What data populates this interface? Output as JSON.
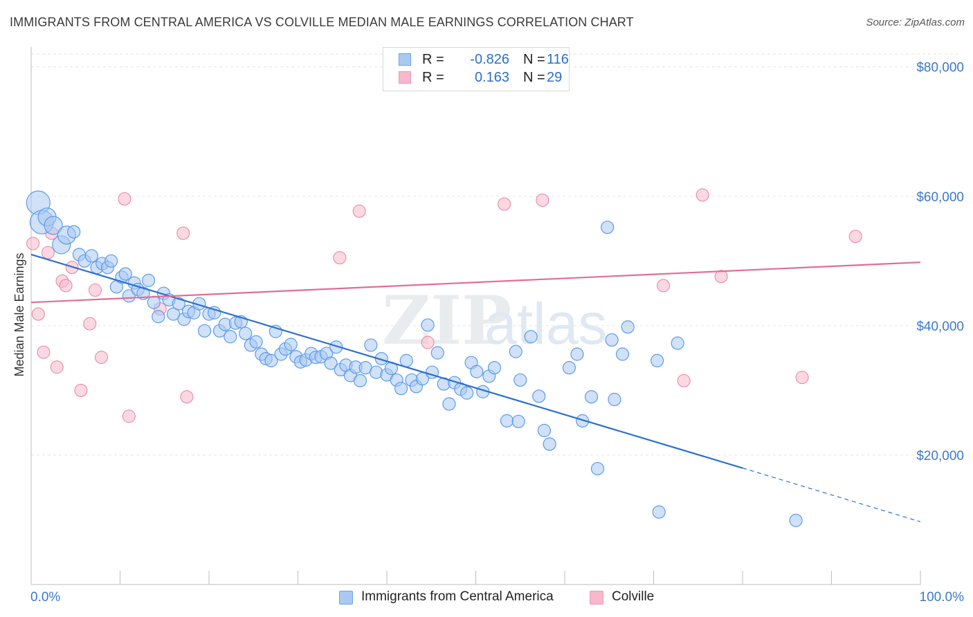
{
  "header": {
    "title": "IMMIGRANTS FROM CENTRAL AMERICA VS COLVILLE MEDIAN MALE EARNINGS CORRELATION CHART",
    "source": "Source: ZipAtlas.com"
  },
  "watermark": "ZIPatlas",
  "legend": {
    "rows": [
      {
        "r_label": "R =",
        "r_value": "-0.826",
        "n_label": "N =",
        "n_value": "116",
        "color": "#a9c9f2"
      },
      {
        "r_label": "R =",
        "r_value": "0.163",
        "n_label": "N =",
        "n_value": "29",
        "color": "#f7b8cb"
      }
    ]
  },
  "bottom_legend": {
    "items": [
      {
        "label": "Immigrants from Central America",
        "color": "#a9c9f2"
      },
      {
        "label": "Colville",
        "color": "#f7b8cb"
      }
    ]
  },
  "chart_data": {
    "type": "scatter",
    "title": "IMMIGRANTS FROM CENTRAL AMERICA VS COLVILLE MEDIAN MALE EARNINGS CORRELATION CHART",
    "xlabel": "",
    "ylabel": "Median Male Earnings",
    "xlim": [
      0,
      100
    ],
    "ylim": [
      0,
      82000
    ],
    "x_tick_labels": [
      "0.0%",
      "100.0%"
    ],
    "y_ticks": [
      20000,
      40000,
      60000,
      80000
    ],
    "y_tick_labels": [
      "$20,000",
      "$40,000",
      "$60,000",
      "$80,000"
    ],
    "grid": true,
    "legend_position": "top-center",
    "series": [
      {
        "name": "Immigrants from Central America",
        "color": "#5b9bea",
        "fill": "#a9c9f2",
        "trend": {
          "x0": 0,
          "y0": 51000,
          "x1": 80,
          "y1": 18000,
          "dashed_to_x": 100,
          "dashed_to_y": 9700
        },
        "points": [
          {
            "x": 0.8,
            "y": 59000,
            "s": 3
          },
          {
            "x": 1.2,
            "y": 56000,
            "s": 3
          },
          {
            "x": 1.8,
            "y": 56800,
            "s": 2
          },
          {
            "x": 2.5,
            "y": 55500,
            "s": 2
          },
          {
            "x": 3.4,
            "y": 52500,
            "s": 2
          },
          {
            "x": 4.0,
            "y": 54000,
            "s": 2
          },
          {
            "x": 4.8,
            "y": 54500,
            "s": 1
          },
          {
            "x": 5.4,
            "y": 51000,
            "s": 1
          },
          {
            "x": 6.0,
            "y": 50000,
            "s": 1
          },
          {
            "x": 6.8,
            "y": 50800,
            "s": 1
          },
          {
            "x": 7.4,
            "y": 49000,
            "s": 1
          },
          {
            "x": 8.0,
            "y": 49600,
            "s": 1
          },
          {
            "x": 8.6,
            "y": 49000,
            "s": 1
          },
          {
            "x": 9.0,
            "y": 50000,
            "s": 1
          },
          {
            "x": 9.6,
            "y": 46000,
            "s": 1
          },
          {
            "x": 10.2,
            "y": 47500,
            "s": 1
          },
          {
            "x": 10.6,
            "y": 48000,
            "s": 1
          },
          {
            "x": 11.0,
            "y": 44600,
            "s": 1
          },
          {
            "x": 11.6,
            "y": 46600,
            "s": 1
          },
          {
            "x": 12.0,
            "y": 45600,
            "s": 1
          },
          {
            "x": 12.6,
            "y": 45000,
            "s": 1
          },
          {
            "x": 13.2,
            "y": 47000,
            "s": 1
          },
          {
            "x": 13.8,
            "y": 43600,
            "s": 1
          },
          {
            "x": 14.3,
            "y": 41400,
            "s": 1
          },
          {
            "x": 14.9,
            "y": 45000,
            "s": 1
          },
          {
            "x": 15.5,
            "y": 44000,
            "s": 1
          },
          {
            "x": 16.0,
            "y": 41800,
            "s": 1
          },
          {
            "x": 16.6,
            "y": 43400,
            "s": 1
          },
          {
            "x": 17.2,
            "y": 41000,
            "s": 1
          },
          {
            "x": 17.7,
            "y": 42200,
            "s": 1
          },
          {
            "x": 18.3,
            "y": 42000,
            "s": 1
          },
          {
            "x": 18.9,
            "y": 43400,
            "s": 1
          },
          {
            "x": 19.5,
            "y": 39200,
            "s": 1
          },
          {
            "x": 20.0,
            "y": 41800,
            "s": 1
          },
          {
            "x": 20.6,
            "y": 42000,
            "s": 1
          },
          {
            "x": 21.2,
            "y": 39200,
            "s": 1
          },
          {
            "x": 21.8,
            "y": 40200,
            "s": 1
          },
          {
            "x": 22.4,
            "y": 38300,
            "s": 1
          },
          {
            "x": 23.0,
            "y": 40400,
            "s": 1
          },
          {
            "x": 23.6,
            "y": 40600,
            "s": 1
          },
          {
            "x": 24.1,
            "y": 38800,
            "s": 1
          },
          {
            "x": 24.7,
            "y": 37000,
            "s": 1
          },
          {
            "x": 25.3,
            "y": 37500,
            "s": 1
          },
          {
            "x": 25.9,
            "y": 35600,
            "s": 1
          },
          {
            "x": 26.4,
            "y": 34900,
            "s": 1
          },
          {
            "x": 27.0,
            "y": 34600,
            "s": 1
          },
          {
            "x": 27.5,
            "y": 39100,
            "s": 1
          },
          {
            "x": 28.1,
            "y": 35600,
            "s": 1
          },
          {
            "x": 28.6,
            "y": 36400,
            "s": 1
          },
          {
            "x": 29.2,
            "y": 37100,
            "s": 1
          },
          {
            "x": 29.8,
            "y": 35200,
            "s": 1
          },
          {
            "x": 30.3,
            "y": 34400,
            "s": 1
          },
          {
            "x": 30.9,
            "y": 34700,
            "s": 1
          },
          {
            "x": 31.5,
            "y": 35700,
            "s": 1
          },
          {
            "x": 32.0,
            "y": 35100,
            "s": 1
          },
          {
            "x": 32.6,
            "y": 35200,
            "s": 1
          },
          {
            "x": 33.2,
            "y": 35700,
            "s": 1
          },
          {
            "x": 33.7,
            "y": 34200,
            "s": 1
          },
          {
            "x": 34.3,
            "y": 36700,
            "s": 1
          },
          {
            "x": 34.8,
            "y": 33200,
            "s": 1
          },
          {
            "x": 35.4,
            "y": 33900,
            "s": 1
          },
          {
            "x": 35.9,
            "y": 32300,
            "s": 1
          },
          {
            "x": 36.5,
            "y": 33600,
            "s": 1
          },
          {
            "x": 37.0,
            "y": 31500,
            "s": 1
          },
          {
            "x": 37.6,
            "y": 33500,
            "s": 1
          },
          {
            "x": 38.2,
            "y": 37000,
            "s": 1
          },
          {
            "x": 38.8,
            "y": 32800,
            "s": 1
          },
          {
            "x": 39.4,
            "y": 34900,
            "s": 1
          },
          {
            "x": 40.0,
            "y": 32400,
            "s": 1
          },
          {
            "x": 40.5,
            "y": 33400,
            "s": 1
          },
          {
            "x": 41.1,
            "y": 31600,
            "s": 1
          },
          {
            "x": 41.6,
            "y": 30300,
            "s": 1
          },
          {
            "x": 42.2,
            "y": 34600,
            "s": 1
          },
          {
            "x": 42.8,
            "y": 31600,
            "s": 1
          },
          {
            "x": 43.3,
            "y": 30600,
            "s": 1
          },
          {
            "x": 44.0,
            "y": 31800,
            "s": 1
          },
          {
            "x": 44.6,
            "y": 40100,
            "s": 1
          },
          {
            "x": 45.1,
            "y": 32800,
            "s": 1
          },
          {
            "x": 45.7,
            "y": 35800,
            "s": 1
          },
          {
            "x": 46.4,
            "y": 31000,
            "s": 1
          },
          {
            "x": 47.0,
            "y": 27900,
            "s": 1
          },
          {
            "x": 47.6,
            "y": 31200,
            "s": 1
          },
          {
            "x": 48.3,
            "y": 30200,
            "s": 1
          },
          {
            "x": 49.0,
            "y": 29600,
            "s": 1
          },
          {
            "x": 49.5,
            "y": 34300,
            "s": 1
          },
          {
            "x": 50.1,
            "y": 32900,
            "s": 1
          },
          {
            "x": 50.8,
            "y": 29800,
            "s": 1
          },
          {
            "x": 51.5,
            "y": 32200,
            "s": 1
          },
          {
            "x": 52.1,
            "y": 33500,
            "s": 1
          },
          {
            "x": 53.5,
            "y": 25300,
            "s": 1
          },
          {
            "x": 54.5,
            "y": 36000,
            "s": 1
          },
          {
            "x": 54.8,
            "y": 25200,
            "s": 1
          },
          {
            "x": 55.0,
            "y": 31600,
            "s": 1
          },
          {
            "x": 56.2,
            "y": 38300,
            "s": 1
          },
          {
            "x": 57.1,
            "y": 29100,
            "s": 1
          },
          {
            "x": 57.7,
            "y": 23800,
            "s": 1
          },
          {
            "x": 58.3,
            "y": 21700,
            "s": 1
          },
          {
            "x": 60.5,
            "y": 33500,
            "s": 1
          },
          {
            "x": 61.4,
            "y": 35600,
            "s": 1
          },
          {
            "x": 62.0,
            "y": 25300,
            "s": 1
          },
          {
            "x": 63.0,
            "y": 29000,
            "s": 1
          },
          {
            "x": 63.7,
            "y": 17900,
            "s": 1
          },
          {
            "x": 64.8,
            "y": 55200,
            "s": 1
          },
          {
            "x": 65.3,
            "y": 37800,
            "s": 1
          },
          {
            "x": 65.6,
            "y": 28600,
            "s": 1
          },
          {
            "x": 66.5,
            "y": 35600,
            "s": 1
          },
          {
            "x": 67.1,
            "y": 39800,
            "s": 1
          },
          {
            "x": 70.4,
            "y": 34600,
            "s": 1
          },
          {
            "x": 70.6,
            "y": 11200,
            "s": 1
          },
          {
            "x": 72.7,
            "y": 37300,
            "s": 1
          },
          {
            "x": 80.0,
            "y": 25000,
            "s": 0
          },
          {
            "x": 86.0,
            "y": 9900,
            "s": 1
          }
        ]
      },
      {
        "name": "Colville",
        "color": "#ea7fa0",
        "fill": "#f7b8cb",
        "trend": {
          "x0": 0,
          "y0": 43600,
          "x1": 100,
          "y1": 49800
        },
        "points": [
          {
            "x": 0.2,
            "y": 52700
          },
          {
            "x": 0.8,
            "y": 41800
          },
          {
            "x": 1.4,
            "y": 35900
          },
          {
            "x": 1.9,
            "y": 51300
          },
          {
            "x": 2.3,
            "y": 54300
          },
          {
            "x": 2.9,
            "y": 33600
          },
          {
            "x": 3.5,
            "y": 46900
          },
          {
            "x": 3.9,
            "y": 46200
          },
          {
            "x": 4.6,
            "y": 49000
          },
          {
            "x": 5.6,
            "y": 30000
          },
          {
            "x": 6.6,
            "y": 40300
          },
          {
            "x": 7.2,
            "y": 45500
          },
          {
            "x": 7.9,
            "y": 35100
          },
          {
            "x": 10.5,
            "y": 59600
          },
          {
            "x": 11.0,
            "y": 26000
          },
          {
            "x": 14.5,
            "y": 42600
          },
          {
            "x": 17.1,
            "y": 54300
          },
          {
            "x": 17.5,
            "y": 29000
          },
          {
            "x": 34.7,
            "y": 50500
          },
          {
            "x": 36.9,
            "y": 57700
          },
          {
            "x": 44.6,
            "y": 37400
          },
          {
            "x": 53.2,
            "y": 58800
          },
          {
            "x": 57.5,
            "y": 59400
          },
          {
            "x": 71.1,
            "y": 46200
          },
          {
            "x": 73.4,
            "y": 31500
          },
          {
            "x": 75.5,
            "y": 60200
          },
          {
            "x": 77.6,
            "y": 47600
          },
          {
            "x": 86.7,
            "y": 32000
          },
          {
            "x": 92.7,
            "y": 53800
          }
        ]
      }
    ]
  }
}
